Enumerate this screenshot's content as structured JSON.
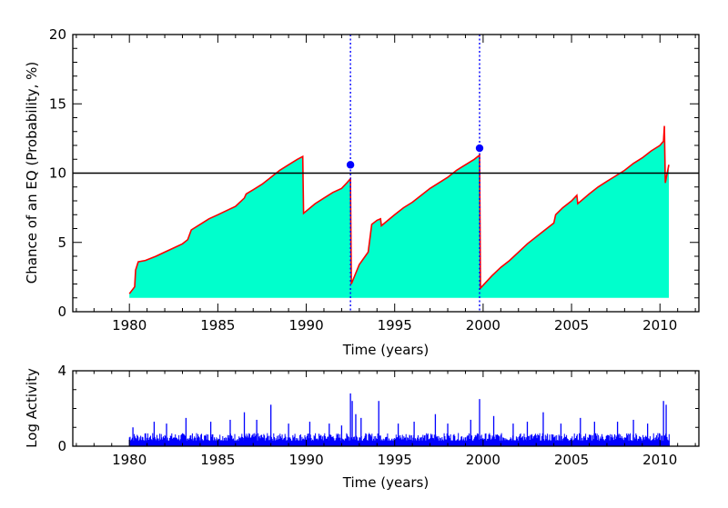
{
  "chart_data": [
    {
      "type": "area",
      "xlabel": "Time (years)",
      "ylabel": "Chance of an EQ (Probability, %)",
      "xlim": [
        1976.8,
        2012.2
      ],
      "ylim": [
        0,
        20
      ],
      "xticks": [
        "1980",
        "1985",
        "1990",
        "1995",
        "2000",
        "2005",
        "2010"
      ],
      "yticks": [
        "0",
        "5",
        "10",
        "15",
        "20"
      ],
      "threshold": 10,
      "colors": {
        "fill": "#00ffcc",
        "line": "#ff0000",
        "threshold": "#000000",
        "event": "#0000ff"
      },
      "series": {
        "x": [
          1980.0,
          1980.3,
          1980.35,
          1980.5,
          1980.9,
          1981.5,
          1982.0,
          1982.5,
          1983.0,
          1983.3,
          1983.5,
          1984.0,
          1984.5,
          1985.0,
          1985.5,
          1986.0,
          1986.5,
          1986.6,
          1987.0,
          1987.5,
          1988.0,
          1988.5,
          1989.0,
          1989.5,
          1989.8,
          1989.85,
          1990.5,
          1991.0,
          1991.5,
          1992.0,
          1992.3,
          1992.5,
          1992.55,
          1993.0,
          1993.5,
          1993.7,
          1994.0,
          1994.2,
          1994.25,
          1995.0,
          1995.5,
          1996.0,
          1996.5,
          1997.0,
          1997.5,
          1998.0,
          1998.5,
          1999.0,
          1999.5,
          1999.8,
          1999.85,
          2000.5,
          2001.0,
          2001.5,
          2002.0,
          2002.5,
          2003.0,
          2003.5,
          2004.0,
          2004.1,
          2004.5,
          2005.0,
          2005.3,
          2005.35,
          2006.0,
          2006.5,
          2007.0,
          2007.5,
          2008.0,
          2008.5,
          2009.0,
          2009.5,
          2010.0,
          2010.2,
          2010.25,
          2010.3,
          2010.5
        ],
        "y": [
          1.3,
          1.8,
          3.0,
          3.6,
          3.7,
          4.0,
          4.3,
          4.6,
          4.9,
          5.2,
          5.9,
          6.3,
          6.7,
          7.0,
          7.3,
          7.6,
          8.2,
          8.5,
          8.8,
          9.2,
          9.7,
          10.2,
          10.6,
          11.0,
          11.2,
          7.1,
          7.8,
          8.2,
          8.6,
          8.9,
          9.3,
          9.6,
          2.0,
          3.4,
          4.3,
          6.3,
          6.6,
          6.7,
          6.2,
          7.0,
          7.5,
          7.9,
          8.4,
          8.9,
          9.3,
          9.7,
          10.2,
          10.6,
          11.0,
          11.3,
          1.7,
          2.6,
          3.2,
          3.7,
          4.3,
          4.9,
          5.4,
          5.9,
          6.4,
          7.0,
          7.5,
          8.0,
          8.4,
          7.8,
          8.5,
          9.0,
          9.4,
          9.8,
          10.2,
          10.7,
          11.1,
          11.6,
          12.0,
          12.3,
          13.4,
          9.3,
          10.6
        ]
      },
      "events": [
        {
          "x": 1992.5,
          "y": 10.6
        },
        {
          "x": 1999.8,
          "y": 11.8
        }
      ]
    },
    {
      "type": "bar",
      "xlabel": "Time (years)",
      "ylabel": "Log Activity",
      "xlim": [
        1976.8,
        2012.2
      ],
      "ylim": [
        0,
        4
      ],
      "xticks": [
        "1980",
        "1985",
        "1990",
        "1995",
        "2000",
        "2005",
        "2010"
      ],
      "yticks": [
        "0",
        "4"
      ],
      "colors": {
        "bar": "#0000ff"
      },
      "peaks": {
        "x": [
          1980.2,
          1981.4,
          1982.1,
          1983.2,
          1984.6,
          1985.7,
          1986.5,
          1987.2,
          1988.0,
          1989.0,
          1990.2,
          1991.3,
          1992.0,
          1992.5,
          1992.6,
          1992.8,
          1993.1,
          1994.1,
          1995.2,
          1996.1,
          1997.3,
          1998.0,
          1999.3,
          1999.8,
          2000.6,
          2001.7,
          2002.5,
          2003.4,
          2004.4,
          2005.5,
          2006.3,
          2007.6,
          2008.5,
          2009.3,
          2010.2,
          2010.35
        ],
        "values": [
          1.0,
          1.3,
          1.2,
          1.5,
          1.3,
          1.4,
          1.8,
          1.4,
          2.2,
          1.2,
          1.3,
          1.2,
          1.1,
          2.8,
          2.4,
          1.7,
          1.5,
          2.4,
          1.2,
          1.3,
          1.7,
          1.2,
          1.4,
          2.5,
          1.6,
          1.2,
          1.3,
          1.8,
          1.2,
          1.5,
          1.3,
          1.3,
          1.4,
          1.2,
          2.4,
          2.2
        ]
      }
    }
  ]
}
